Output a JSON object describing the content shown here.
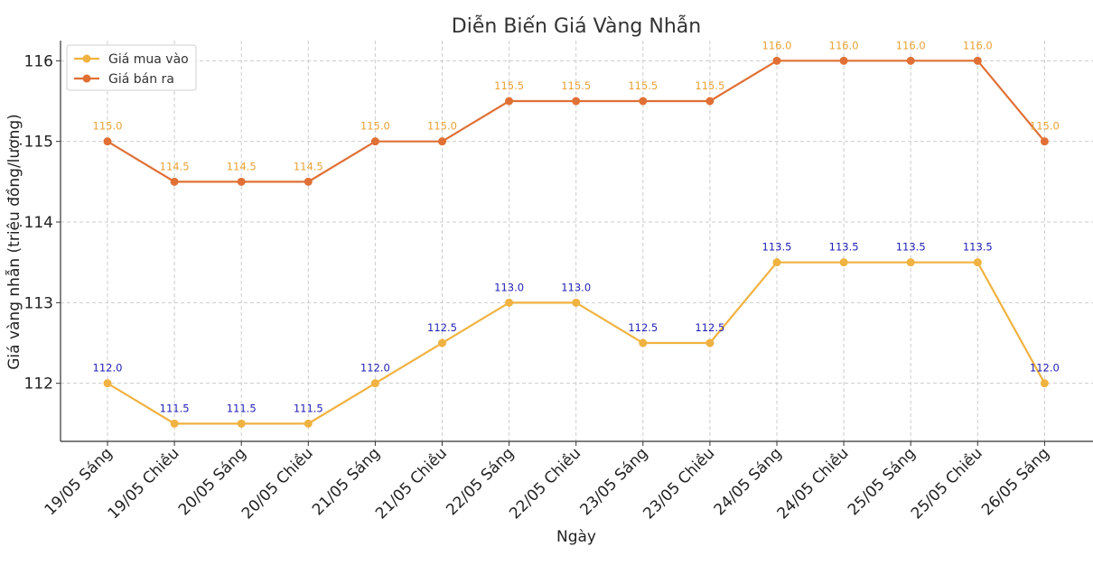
{
  "chart_data": {
    "type": "line",
    "title": "Diễn Biến Giá Vàng Nhẫn",
    "xlabel": "Ngày",
    "ylabel": "Giá vàng nhẫn (triệu đồng/lượng)",
    "categories": [
      "19/05 Sáng",
      "19/05 Chiều",
      "20/05 Sáng",
      "20/05 Chiều",
      "21/05 Sáng",
      "21/05 Chiều",
      "22/05 Sáng",
      "22/05 Chiều",
      "23/05 Sáng",
      "23/05 Chiều",
      "24/05 Sáng",
      "24/05 Chiều",
      "25/05 Sáng",
      "25/05 Chiều",
      "26/05 Sáng"
    ],
    "series": [
      {
        "name": "Giá mua vào",
        "color": "#f0b240",
        "label_color": "#1f1fb4",
        "values": [
          112.0,
          111.5,
          111.5,
          111.5,
          112.0,
          112.5,
          113.0,
          113.0,
          112.5,
          112.5,
          113.5,
          113.5,
          113.5,
          113.5,
          112.0
        ],
        "labels": [
          "112.0",
          "111.5",
          "111.5",
          "111.5",
          "112.0",
          "112.5",
          "113.0",
          "113.0",
          "112.5",
          "112.5",
          "113.5",
          "113.5",
          "113.5",
          "113.5",
          "112.0"
        ]
      },
      {
        "name": "Giá bán ra",
        "color": "#e07035",
        "label_color": "#e8a235",
        "values": [
          115.0,
          114.5,
          114.5,
          114.5,
          115.0,
          115.0,
          115.5,
          115.5,
          115.5,
          115.5,
          116.0,
          116.0,
          116.0,
          116.0,
          115.0
        ],
        "labels": [
          "115.0",
          "114.5",
          "114.5",
          "114.5",
          "115.0",
          "115.0",
          "115.5",
          "115.5",
          "115.5",
          "115.5",
          "116.0",
          "116.0",
          "116.0",
          "116.0",
          "115.0"
        ]
      }
    ],
    "yticks": [
      112,
      113,
      114,
      115,
      116
    ],
    "ytick_labels": [
      "112",
      "113",
      "114",
      "115",
      "116"
    ],
    "ylim": [
      111.28,
      116.25
    ],
    "grid": true,
    "legend_position": "top-left"
  }
}
